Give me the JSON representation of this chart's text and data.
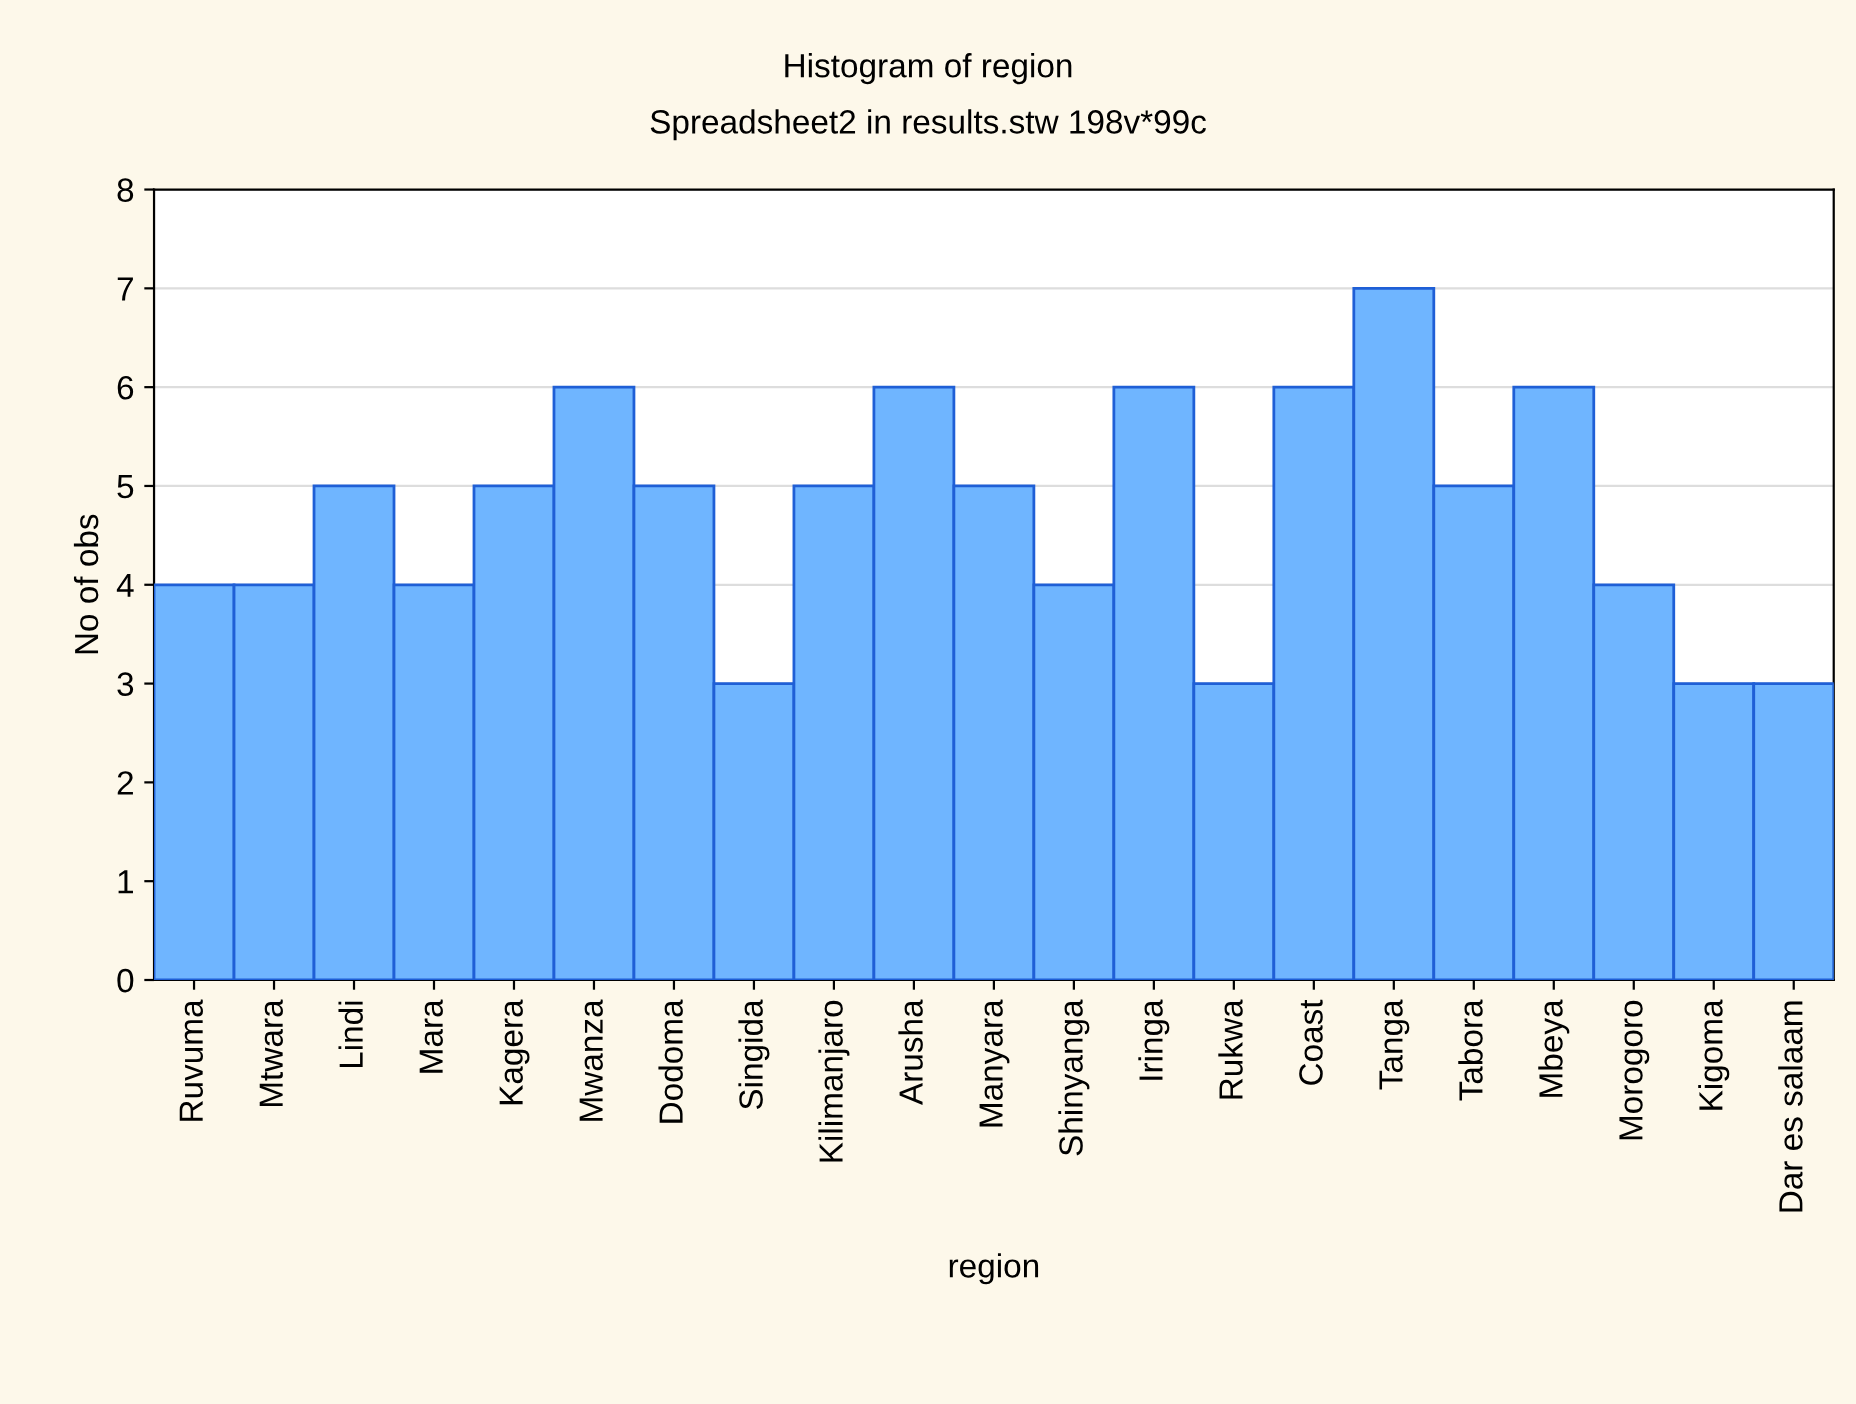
{
  "chart_data": {
    "type": "bar",
    "title": "Histogram of region",
    "subtitle": "Spreadsheet2 in results.stw 198v*99c",
    "xlabel": "region",
    "ylabel": "No of obs",
    "categories": [
      "Ruvuma",
      "Mtwara",
      "Lindi",
      "Mara",
      "Kagera",
      "Mwanza",
      "Dodoma",
      "Singida",
      "Kilimanjaro",
      "Arusha",
      "Manyara",
      "Shinyanga",
      "Iringa",
      "Rukwa",
      "Coast",
      "Tanga",
      "Tabora",
      "Mbeya",
      "Morogoro",
      "Kigoma",
      "Dar es salaam"
    ],
    "values": [
      4,
      4,
      5,
      4,
      5,
      6,
      5,
      3,
      5,
      6,
      5,
      4,
      6,
      3,
      6,
      7,
      5,
      6,
      4,
      3,
      3
    ],
    "color": "#6fb5ff",
    "ylim": [
      0,
      8
    ],
    "yticks": [
      0,
      1,
      2,
      3,
      4,
      5,
      6,
      7,
      8
    ],
    "grid": "y"
  }
}
